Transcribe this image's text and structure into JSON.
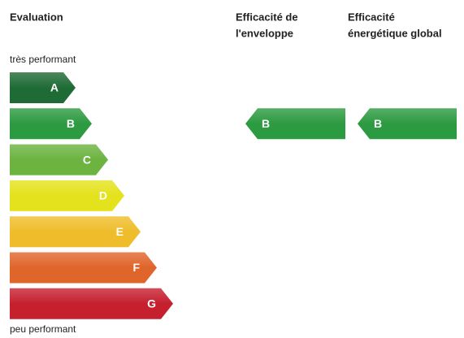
{
  "header": {
    "title": "Evaluation"
  },
  "scale": {
    "top_label": "très performant",
    "bottom_label": "peu performant",
    "classes": [
      {
        "letter": "A",
        "color": "#1f6b35"
      },
      {
        "letter": "B",
        "color": "#2c9a40"
      },
      {
        "letter": "C",
        "color": "#6cb340"
      },
      {
        "letter": "D",
        "color": "#e4e21c"
      },
      {
        "letter": "E",
        "color": "#efbd2b"
      },
      {
        "letter": "F",
        "color": "#e0652b"
      },
      {
        "letter": "G",
        "color": "#c6202f"
      }
    ]
  },
  "ratings": [
    {
      "title_lines": [
        "Efficacité de",
        "l'enveloppe"
      ],
      "class": "B"
    },
    {
      "title_lines": [
        "Efficacité",
        "énergétique global"
      ],
      "class": "B"
    }
  ]
}
